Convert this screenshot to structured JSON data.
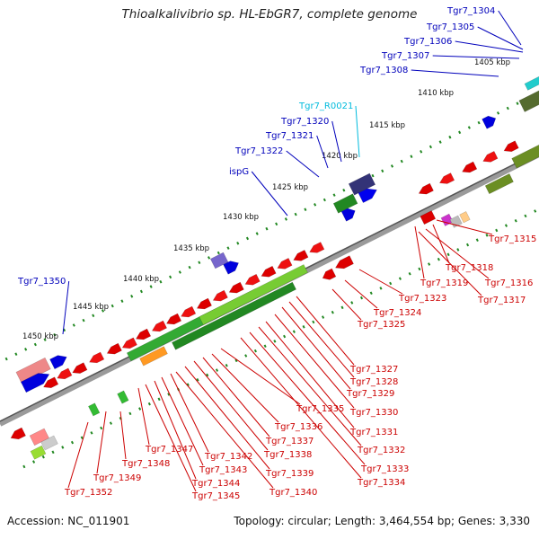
{
  "title": "Thioalkalivibrio sp. HL-EbGR7, complete genome",
  "accession_label": "Accession: NC_011901",
  "meta_label": "Topology: circular; Length: 3,464,554 bp; Genes: 3,330",
  "colors": {
    "blue_label": "#0000bb",
    "red_label": "#cc0000",
    "cyan_label": "#00bbdd",
    "backbone": "#888888",
    "tick_dot": "#228822"
  },
  "kbp_ticks": [
    "1405 kbp",
    "1410 kbp",
    "1415 kbp",
    "1420 kbp",
    "1425 kbp",
    "1430 kbp",
    "1435 kbp",
    "1440 kbp",
    "1445 kbp",
    "1450 kbp"
  ],
  "top_labels": [
    "Tgr7_1304",
    "Tgr7_1305",
    "Tgr7_1306",
    "Tgr7_1307",
    "Tgr7_1308",
    "Tgr7_R0021",
    "Tgr7_1320",
    "Tgr7_1321",
    "Tgr7_1322",
    "ispG",
    "Tgr7_1350"
  ],
  "bottom_labels": [
    "Tgr7_1315",
    "Tgr7_1318",
    "Tgr7_1316",
    "Tgr7_1319",
    "Tgr7_1317",
    "Tgr7_1323",
    "Tgr7_1324",
    "Tgr7_1325",
    "Tgr7_1327",
    "Tgr7_1328",
    "Tgr7_1329",
    "Tgr7_1330",
    "Tgr7_1331",
    "Tgr7_1332",
    "Tgr7_1333",
    "Tgr7_1334",
    "Tgr7_1335",
    "Tgr7_1336",
    "Tgr7_1337",
    "Tgr7_1338",
    "Tgr7_1339",
    "Tgr7_1340",
    "Tgr7_1342",
    "Tgr7_1343",
    "Tgr7_1344",
    "Tgr7_1345",
    "Tgr7_1347",
    "Tgr7_1348",
    "Tgr7_1349",
    "Tgr7_1352"
  ]
}
